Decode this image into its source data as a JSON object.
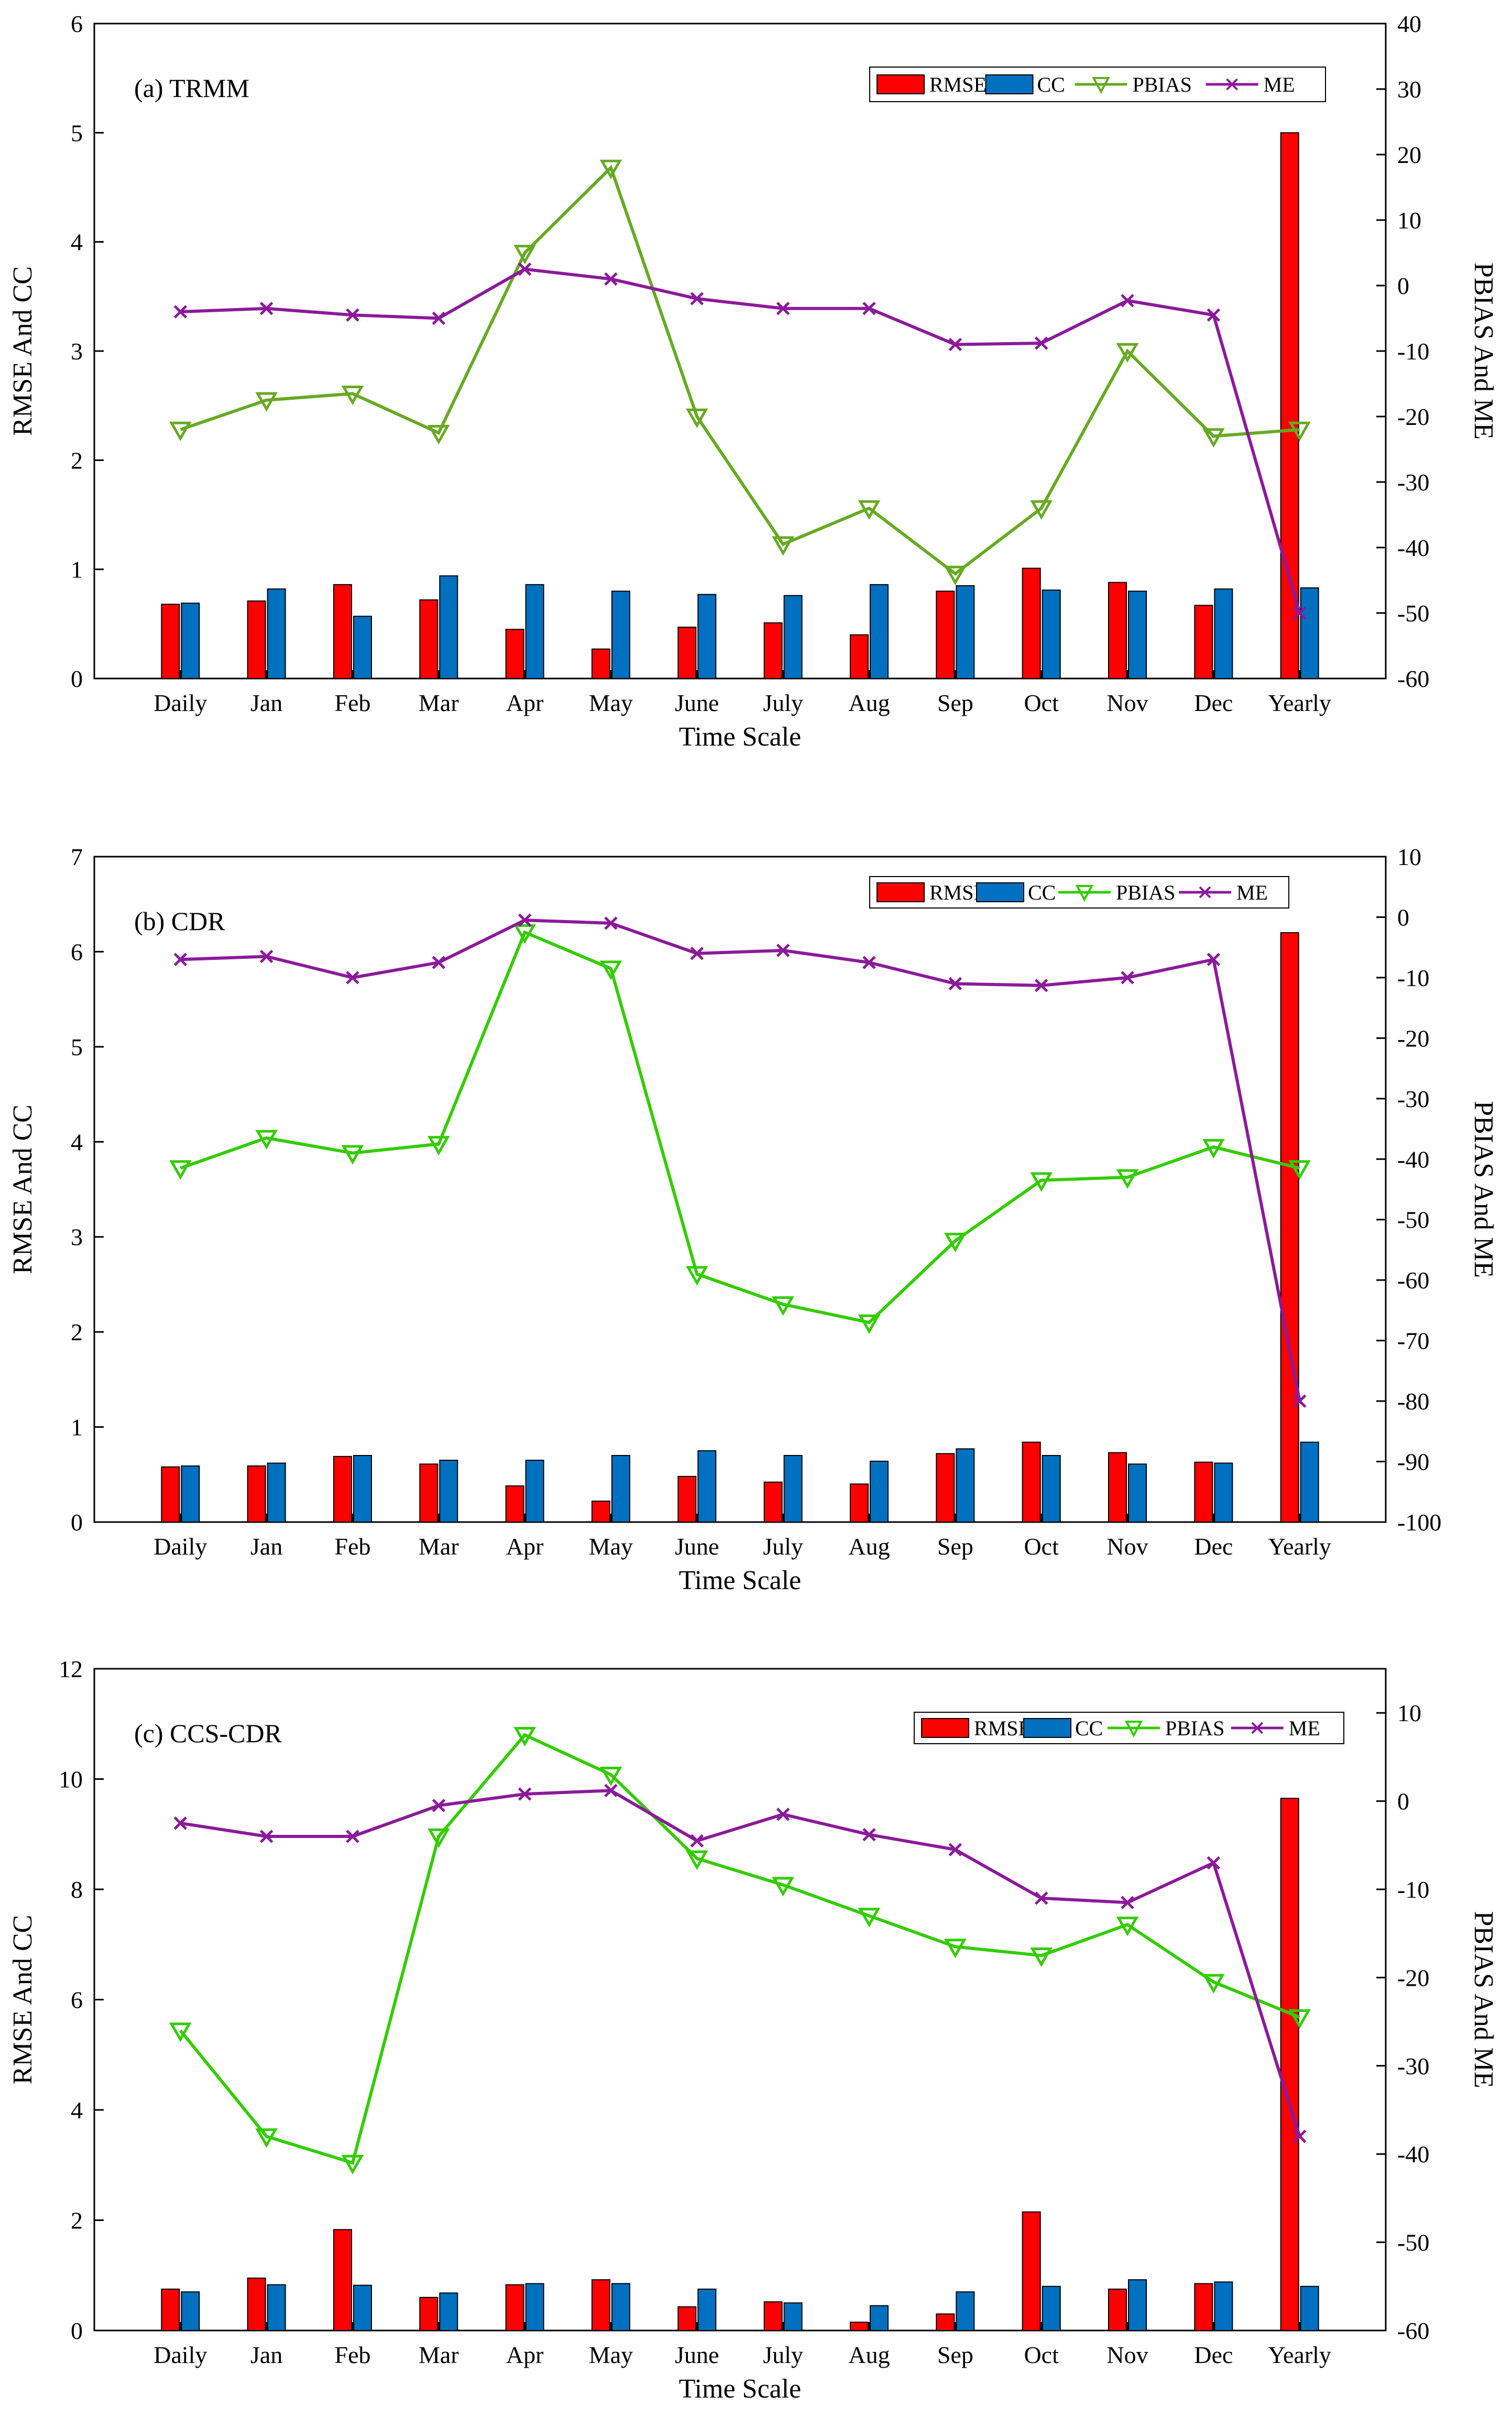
{
  "figure": {
    "description_panels": [
      "a",
      "b",
      "c"
    ]
  },
  "colors": {
    "rmse": "#ff0000",
    "cc": "#0070c0",
    "pbias": "#33cc00",
    "pbias_a": "#66aa22",
    "me": "#8b1a9a"
  },
  "chart_data": [
    {
      "type": "bar",
      "title": "(a) TRMM",
      "categories": [
        "Daily",
        "Jan",
        "Feb",
        "Mar",
        "Apr",
        "May",
        "June",
        "July",
        "Aug",
        "Sep",
        "Oct",
        "Nov",
        "Dec",
        "Yearly"
      ],
      "xlabel": "Time Scale",
      "ylabel": "RMSE And CC",
      "y2label": "PBIAS And ME",
      "ylim": [
        0,
        6
      ],
      "yticks": [
        "0",
        "1",
        "2",
        "3",
        "4",
        "5",
        "6"
      ],
      "y2lim": [
        -60,
        40
      ],
      "y2ticks": [
        "-60",
        "-50",
        "-40",
        "-30",
        "-20",
        "-10",
        "0",
        "10",
        "20",
        "30",
        "40"
      ],
      "legend": [
        "RMSE",
        "CC",
        "PBIAS",
        "ME"
      ],
      "series": [
        {
          "name": "RMSE",
          "axis": "left",
          "type": "bar",
          "values": [
            0.68,
            0.71,
            0.86,
            0.72,
            0.45,
            0.27,
            0.47,
            0.51,
            0.4,
            0.8,
            1.01,
            0.88,
            0.67,
            5.0
          ]
        },
        {
          "name": "CC",
          "axis": "left",
          "type": "bar",
          "values": [
            0.69,
            0.82,
            0.57,
            0.94,
            0.86,
            0.8,
            0.77,
            0.76,
            0.86,
            0.85,
            0.81,
            0.8,
            0.82,
            0.83
          ]
        },
        {
          "name": "PBIAS",
          "axis": "right",
          "type": "line",
          "values": [
            -22,
            -17.5,
            -16.5,
            -22.5,
            5,
            18,
            -20,
            -39.5,
            -34,
            -44,
            -34,
            -10,
            -23,
            -22
          ]
        },
        {
          "name": "ME",
          "axis": "right",
          "type": "line",
          "values": [
            -4,
            -3.5,
            -4.5,
            -5,
            2.5,
            1,
            -2,
            -3.5,
            -3.5,
            -9,
            -8.8,
            -2.3,
            -4.5,
            -50
          ]
        }
      ]
    },
    {
      "type": "bar",
      "title": "(b) CDR",
      "categories": [
        "Daily",
        "Jan",
        "Feb",
        "Mar",
        "Apr",
        "May",
        "June",
        "July",
        "Aug",
        "Sep",
        "Oct",
        "Nov",
        "Dec",
        "Yearly"
      ],
      "xlabel": "Time Scale",
      "ylabel": "RMSE And CC",
      "y2label": "PBIAS And ME",
      "ylim": [
        0,
        7
      ],
      "yticks": [
        "0",
        "1",
        "2",
        "3",
        "4",
        "5",
        "6",
        "7"
      ],
      "y2lim": [
        -100,
        10
      ],
      "y2ticks": [
        "-100",
        "-90",
        "-80",
        "-70",
        "-60",
        "-50",
        "-40",
        "-30",
        "-20",
        "-10",
        "0",
        "10"
      ],
      "legend": [
        "RMSE",
        "CC",
        "PBIAS",
        "ME"
      ],
      "series": [
        {
          "name": "RMSE",
          "axis": "left",
          "type": "bar",
          "values": [
            0.58,
            0.59,
            0.69,
            0.61,
            0.38,
            0.22,
            0.48,
            0.42,
            0.4,
            0.72,
            0.84,
            0.73,
            0.63,
            6.2
          ]
        },
        {
          "name": "CC",
          "axis": "left",
          "type": "bar",
          "values": [
            0.59,
            0.62,
            0.7,
            0.65,
            0.65,
            0.7,
            0.75,
            0.7,
            0.64,
            0.77,
            0.7,
            0.61,
            0.62,
            0.84
          ]
        },
        {
          "name": "PBIAS",
          "axis": "right",
          "type": "line",
          "values": [
            -41.5,
            -36.5,
            -39,
            -37.5,
            -2.5,
            -8.5,
            -59,
            -64,
            -67,
            -53.5,
            -43.5,
            -43,
            -38,
            -41.5
          ]
        },
        {
          "name": "ME",
          "axis": "right",
          "type": "line",
          "values": [
            -7,
            -6.5,
            -10,
            -7.5,
            -0.5,
            -1,
            -6,
            -5.5,
            -7.5,
            -11,
            -11.3,
            -10,
            -7,
            -80
          ]
        }
      ]
    },
    {
      "type": "bar",
      "title": "(c) CCS-CDR",
      "categories": [
        "Daily",
        "Jan",
        "Feb",
        "Mar",
        "Apr",
        "May",
        "June",
        "July",
        "Aug",
        "Sep",
        "Oct",
        "Nov",
        "Dec",
        "Yearly"
      ],
      "xlabel": "Time Scale",
      "ylabel": "RMSE And CC",
      "y2label": "PBIAS And ME",
      "ylim": [
        0,
        12
      ],
      "yticks": [
        "0",
        "2",
        "4",
        "6",
        "8",
        "10",
        "12"
      ],
      "y2lim": [
        -60,
        15
      ],
      "y2ticks": [
        "-60",
        "-50",
        "-40",
        "-30",
        "-20",
        "-10",
        "0",
        "10"
      ],
      "legend": [
        "RMSE",
        "CC",
        "PBIAS",
        "ME"
      ],
      "series": [
        {
          "name": "RMSE",
          "axis": "left",
          "type": "bar",
          "values": [
            0.75,
            0.95,
            1.83,
            0.6,
            0.83,
            0.92,
            0.43,
            0.52,
            0.15,
            0.3,
            2.15,
            0.75,
            0.85,
            9.65
          ]
        },
        {
          "name": "CC",
          "axis": "left",
          "type": "bar",
          "values": [
            0.7,
            0.83,
            0.82,
            0.68,
            0.85,
            0.85,
            0.75,
            0.5,
            0.45,
            0.7,
            0.8,
            0.92,
            0.88,
            0.8
          ]
        },
        {
          "name": "PBIAS",
          "axis": "right",
          "type": "line",
          "values": [
            -26,
            -38,
            -41,
            -4,
            7.5,
            3,
            -6.5,
            -9.5,
            -13,
            -16.5,
            -17.5,
            -14,
            -20.5,
            -24.5
          ]
        },
        {
          "name": "ME",
          "axis": "right",
          "type": "line",
          "values": [
            -2.5,
            -4,
            -4,
            -0.5,
            0.8,
            1.2,
            -4.5,
            -1.5,
            -3.8,
            -5.5,
            -11,
            -11.5,
            -7,
            -38
          ]
        }
      ]
    }
  ]
}
